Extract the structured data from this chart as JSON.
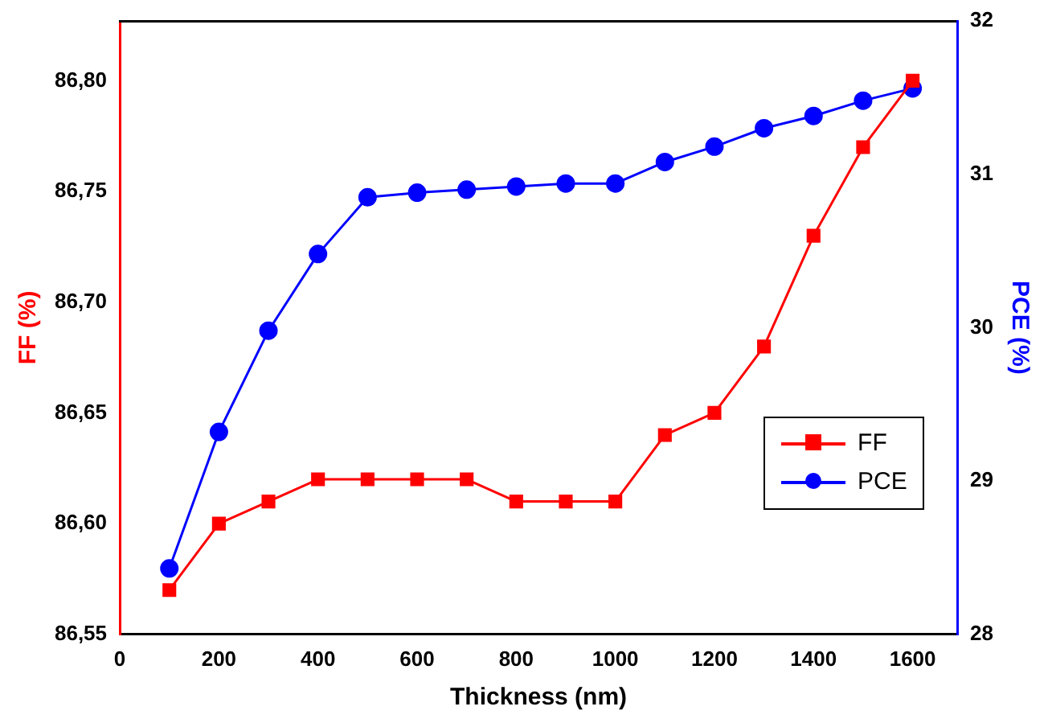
{
  "chart_data": {
    "type": "line",
    "xlabel": "Thickness (nm)",
    "ylabel": "FF (%)",
    "y2label": "PCE (%)",
    "x": [
      100,
      200,
      300,
      400,
      500,
      600,
      700,
      800,
      900,
      1000,
      1100,
      1200,
      1300,
      1400,
      1500,
      1600
    ],
    "series": [
      {
        "name": "FF",
        "color": "#ff0000",
        "marker": "square",
        "values": [
          86.57,
          86.6,
          86.61,
          86.62,
          86.62,
          86.62,
          86.62,
          86.61,
          86.61,
          86.61,
          86.64,
          86.65,
          86.68,
          86.73,
          86.77,
          86.8
        ]
      },
      {
        "name": "PCE",
        "color": "#0000ff",
        "marker": "circle",
        "axis": "y2",
        "values": [
          28.43,
          29.32,
          29.98,
          30.48,
          30.85,
          30.88,
          30.9,
          30.92,
          30.94,
          30.94,
          31.08,
          31.18,
          31.3,
          31.38,
          31.48,
          31.56
        ]
      }
    ],
    "xlim": [
      0,
      1690
    ],
    "xticks": [
      0,
      200,
      400,
      600,
      800,
      1000,
      1200,
      1400,
      1600
    ],
    "ylim": [
      86.55,
      86.827
    ],
    "yticks": [
      {
        "value": 86.55,
        "label": "86,55"
      },
      {
        "value": 86.6,
        "label": "86,60"
      },
      {
        "value": 86.65,
        "label": "86,65"
      },
      {
        "value": 86.7,
        "label": "86,70"
      },
      {
        "value": 86.75,
        "label": "86,75"
      },
      {
        "value": 86.8,
        "label": "86,80"
      }
    ],
    "y2lim": [
      28,
      32
    ],
    "y2ticks": [
      28,
      29,
      30,
      31,
      32
    ],
    "grid": false,
    "legend": "bottom right",
    "line_style": "solid"
  }
}
